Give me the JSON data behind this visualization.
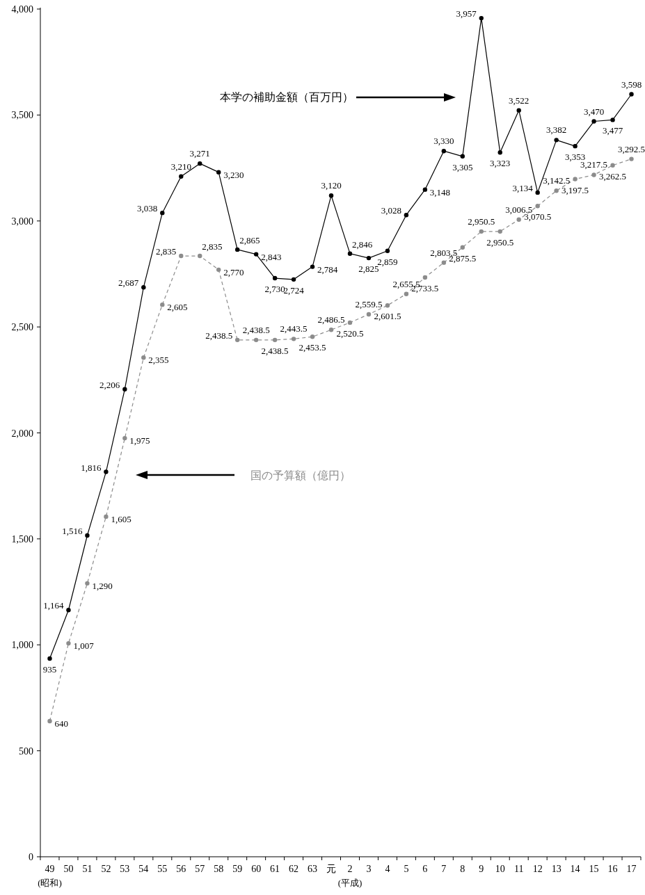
{
  "chart_data": {
    "type": "line",
    "categories": [
      "49",
      "50",
      "51",
      "52",
      "53",
      "54",
      "55",
      "56",
      "57",
      "58",
      "59",
      "60",
      "61",
      "62",
      "63",
      "元",
      "2",
      "3",
      "4",
      "5",
      "6",
      "7",
      "8",
      "9",
      "10",
      "11",
      "12",
      "13",
      "14",
      "15",
      "16",
      "17"
    ],
    "series": [
      {
        "name": "本学の補助金額（百万円）",
        "color": "#000000",
        "line_style": "solid",
        "values": [
          935,
          1164,
          1516,
          1816,
          2206,
          2687,
          3038,
          3210,
          3271,
          3230,
          2865,
          2843,
          2730,
          2724,
          2784,
          3120,
          2846,
          2825,
          2859,
          3028,
          3148,
          3330,
          3305,
          3957,
          3323,
          3522,
          3134,
          3382,
          3353,
          3470,
          3477,
          3598
        ],
        "value_labels": [
          "935",
          "1,164",
          "1,516",
          "1,816",
          "2,206",
          "2,687",
          "3,038",
          "3,210",
          "3,271",
          "3,230",
          "2,865",
          "2,843",
          "2,730",
          "2,724",
          "2,784",
          "3,120",
          "2,846",
          "2,825",
          "2,859",
          "3,028",
          "3,148",
          "3,330",
          "3,305",
          "3,957",
          "3,323",
          "3,522",
          "3,134",
          "3,382",
          "3,353",
          "3,470",
          "3,477",
          "3,598"
        ]
      },
      {
        "name": "国の予算額（億円）",
        "color": "#8c8c8c",
        "line_style": "dashed",
        "values": [
          640,
          1007,
          1290,
          1605,
          1975,
          2355,
          2605,
          2835,
          2835,
          2770,
          2438.5,
          2438.5,
          2438.5,
          2443.5,
          2453.5,
          2486.5,
          2520.5,
          2559.5,
          2601.5,
          2655.5,
          2733.5,
          2803.5,
          2875.5,
          2950.5,
          2950.5,
          3006.5,
          3070.5,
          3142.5,
          3197.5,
          3217.5,
          3262.5,
          3292.5
        ],
        "value_labels": [
          "640",
          "1,007",
          "1,290",
          "1,605",
          "1,975",
          "2,355",
          "2,605",
          "2,835",
          "2,835",
          "2,770",
          "2,438.5",
          "2,438.5",
          "2,438.5",
          "2,443.5",
          "2,453.5",
          "2,486.5",
          "2,520.5",
          "2,559.5",
          "2,601.5",
          "2,655.5",
          "2,733.5",
          "2,803.5",
          "2,875.5",
          "2,950.5",
          "2,950.5",
          "3,006.5",
          "3,070.5",
          "3,142.5",
          "3,197.5",
          "3,217.5",
          "3,262.5",
          "3,292.5"
        ]
      }
    ],
    "ylim": [
      0,
      4000
    ],
    "yticks": [
      0,
      {
        "value": 500,
        "label": "500"
      },
      {
        "value": 1000,
        "label": "1,000"
      },
      {
        "value": 1500,
        "label": "1,500"
      },
      {
        "value": 2000,
        "label": "2,000"
      },
      {
        "value": 2500,
        "label": "2,500"
      },
      {
        "value": 3000,
        "label": "3,000"
      },
      {
        "value": 3500,
        "label": "3,500"
      },
      {
        "value": 4000,
        "label": "4,000"
      }
    ],
    "marker": "circle",
    "grid": false,
    "legend": false,
    "annotations": [
      "(昭和)",
      "(平成)"
    ]
  }
}
